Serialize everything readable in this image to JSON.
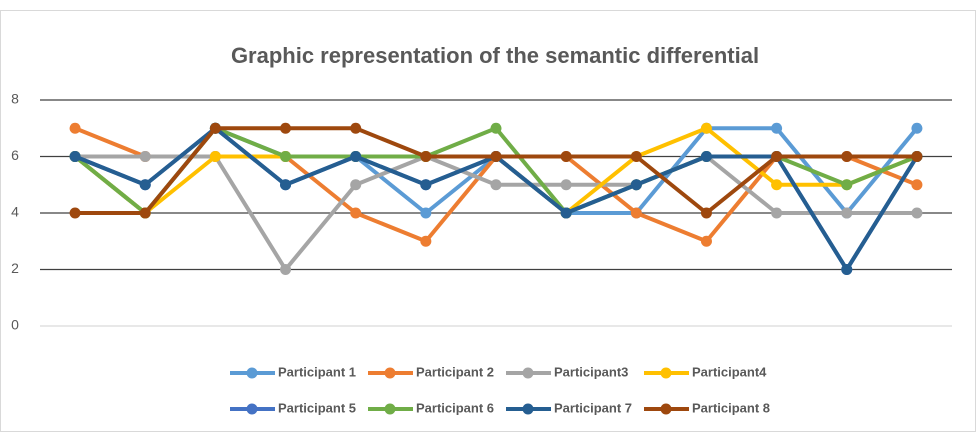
{
  "chart_data": {
    "type": "line",
    "title": "Graphic representation of the semantic differential",
    "categories": [
      null,
      null,
      null,
      null,
      null,
      null,
      null,
      null,
      null,
      null,
      null,
      null,
      null
    ],
    "series": [
      {
        "name": "Participant 1",
        "color": "#5b9bd5",
        "values": [
          6,
          4,
          7,
          6,
          6,
          4,
          6,
          4,
          4,
          7,
          7,
          4,
          7
        ]
      },
      {
        "name": "Participant 2",
        "color": "#ed7d31",
        "values": [
          7,
          6,
          6,
          6,
          4,
          3,
          6,
          6,
          4,
          3,
          6,
          6,
          5
        ]
      },
      {
        "name": "Participant3",
        "color": "#a5a5a5",
        "values": [
          6,
          6,
          6,
          2,
          5,
          6,
          5,
          5,
          5,
          6,
          4,
          4,
          4
        ]
      },
      {
        "name": "Participant4",
        "color": "#ffc000",
        "values": [
          6,
          4,
          6,
          6,
          6,
          6,
          6,
          4,
          6,
          7,
          5,
          5,
          6
        ]
      },
      {
        "name": "Participant 5",
        "color": "#4472c4",
        "values": [
          6,
          5,
          7,
          5,
          6,
          5,
          6,
          4,
          5,
          6,
          6,
          2,
          6
        ]
      },
      {
        "name": "Participant 6",
        "color": "#70ad47",
        "values": [
          6,
          4,
          7,
          6,
          6,
          6,
          7,
          4,
          5,
          6,
          6,
          5,
          6
        ]
      },
      {
        "name": "Participant 7",
        "color": "#255e91",
        "values": [
          6,
          5,
          7,
          5,
          6,
          5,
          6,
          4,
          5,
          6,
          6,
          2,
          6
        ]
      },
      {
        "name": "Participant 8",
        "color": "#9e480e",
        "values": [
          4,
          4,
          7,
          7,
          7,
          6,
          6,
          6,
          6,
          4,
          6,
          6,
          6
        ]
      }
    ],
    "ylim": [
      0,
      8
    ],
    "yticks": [
      0,
      2,
      4,
      6,
      8
    ],
    "grid": true,
    "legend": "bottom"
  }
}
